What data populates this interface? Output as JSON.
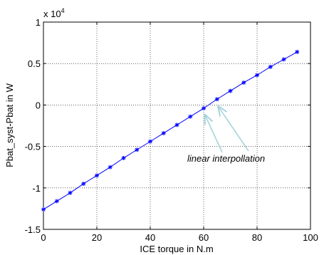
{
  "chart_data": {
    "type": "line",
    "xlabel": "ICE torque in N.m",
    "ylabel": "Pbat_syst-Pbat in W",
    "exponent_label": "x 10",
    "exponent_power": "4",
    "xlim": [
      0,
      100
    ],
    "ylim": [
      -1.5,
      1
    ],
    "y_scale_factor": 10000,
    "grid": true,
    "x_ticks": [
      0,
      20,
      40,
      60,
      80,
      100
    ],
    "x_tick_labels": [
      "0",
      "20",
      "40",
      "60",
      "80",
      "100"
    ],
    "y_ticks": [
      1,
      0.5,
      0,
      -0.5,
      -1,
      -1.5
    ],
    "y_tick_labels": [
      "1",
      "0.5",
      "0",
      "-0.5",
      "-1",
      "-1.5"
    ],
    "series": [
      {
        "marker": "asterisk",
        "color": "#0000ff",
        "x": [
          0,
          5,
          10,
          15,
          20,
          25,
          30,
          35,
          40,
          45,
          50,
          55,
          60,
          65,
          70,
          75,
          80,
          85,
          90,
          95
        ],
        "y": [
          -1.26,
          -1.16,
          -1.06,
          -0.95,
          -0.85,
          -0.75,
          -0.64,
          -0.54,
          -0.44,
          -0.34,
          -0.24,
          -0.14,
          -0.04,
          0.07,
          0.17,
          0.27,
          0.36,
          0.46,
          0.55,
          0.64
        ]
      }
    ],
    "annotation": {
      "text": "linear interpollation",
      "arrow_color": "#a8d4dc",
      "arrow_targets": [
        [
          60.5,
          -0.12
        ],
        [
          65.5,
          -0.02
        ]
      ]
    }
  }
}
